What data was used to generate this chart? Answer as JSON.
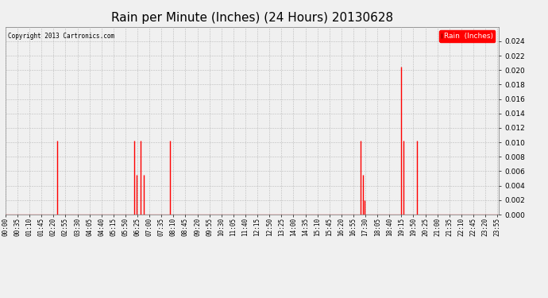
{
  "title": "Rain per Minute (Inches) (24 Hours) 20130628",
  "copyright": "Copyright 2013 Cartronics.com",
  "legend_label": "Rain  (Inches)",
  "ylim": [
    0,
    0.026
  ],
  "yticks": [
    0.0,
    0.002,
    0.004,
    0.006,
    0.008,
    0.01,
    0.012,
    0.014,
    0.016,
    0.018,
    0.02,
    0.022,
    0.024
  ],
  "bg_color": "#f0f0f0",
  "line_color": "#ff0000",
  "grid_color": "#bbbbbb",
  "title_fontsize": 11,
  "tick_fontsize": 5.5,
  "total_minutes": 1440,
  "xtick_interval": 35,
  "spikes": [
    {
      "minute": 150,
      "value": 0.0102
    },
    {
      "minute": 375,
      "value": 0.0102
    },
    {
      "minute": 383,
      "value": 0.0055
    },
    {
      "minute": 395,
      "value": 0.0102
    },
    {
      "minute": 403,
      "value": 0.0055
    },
    {
      "minute": 480,
      "value": 0.0102
    },
    {
      "minute": 1035,
      "value": 0.0102
    },
    {
      "minute": 1042,
      "value": 0.0055
    },
    {
      "minute": 1048,
      "value": 0.002
    },
    {
      "minute": 1155,
      "value": 0.0205
    },
    {
      "minute": 1162,
      "value": 0.0102
    },
    {
      "minute": 1200,
      "value": 0.0102
    }
  ]
}
